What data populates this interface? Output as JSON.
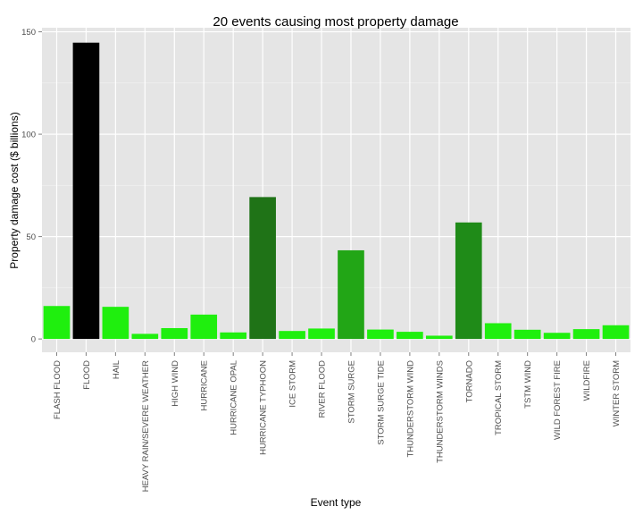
{
  "chart_data": {
    "type": "bar",
    "title": "20 events causing most property damage",
    "xlabel": "Event type",
    "ylabel": "Property damage cost ($ billions)",
    "ylim": [
      -6.5,
      152
    ],
    "yticks": [
      0,
      50,
      100,
      150
    ],
    "grid": true,
    "legend": "none",
    "panel_background": "#e5e5e5",
    "categories": [
      "FLASH FLOOD",
      "FLOOD",
      "HAIL",
      "HEAVY RAIN/SEVERE WEATHER",
      "HIGH WIND",
      "HURRICANE",
      "HURRICANE OPAL",
      "HURRICANE TYPHOON",
      "ICE STORM",
      "RIVER FLOOD",
      "STORM SURGE",
      "STORM SURGE TIDE",
      "THUNDERSTORM WIND",
      "THUNDERSTORM WINDS",
      "TORNADO",
      "TROPICAL STORM",
      "TSTM WIND",
      "WILD FOREST FIRE",
      "WILDFIRE",
      "WINTER STORM"
    ],
    "values": [
      16.1,
      144.7,
      15.7,
      2.5,
      5.3,
      11.9,
      3.2,
      69.3,
      3.9,
      5.1,
      43.3,
      4.6,
      3.5,
      1.6,
      56.9,
      7.7,
      4.5,
      3.0,
      4.8,
      6.7
    ],
    "colors": [
      "#1fef0e",
      "#000000",
      "#1fef0e",
      "#1fef0e",
      "#1fef0e",
      "#1fef0e",
      "#1fef0e",
      "#1f7317",
      "#1fef0e",
      "#1fef0e",
      "#22a616",
      "#1fef0e",
      "#1fef0e",
      "#1fef0e",
      "#1f8b18",
      "#1fef0e",
      "#1fef0e",
      "#1fef0e",
      "#1fef0e",
      "#1fef0e"
    ]
  }
}
